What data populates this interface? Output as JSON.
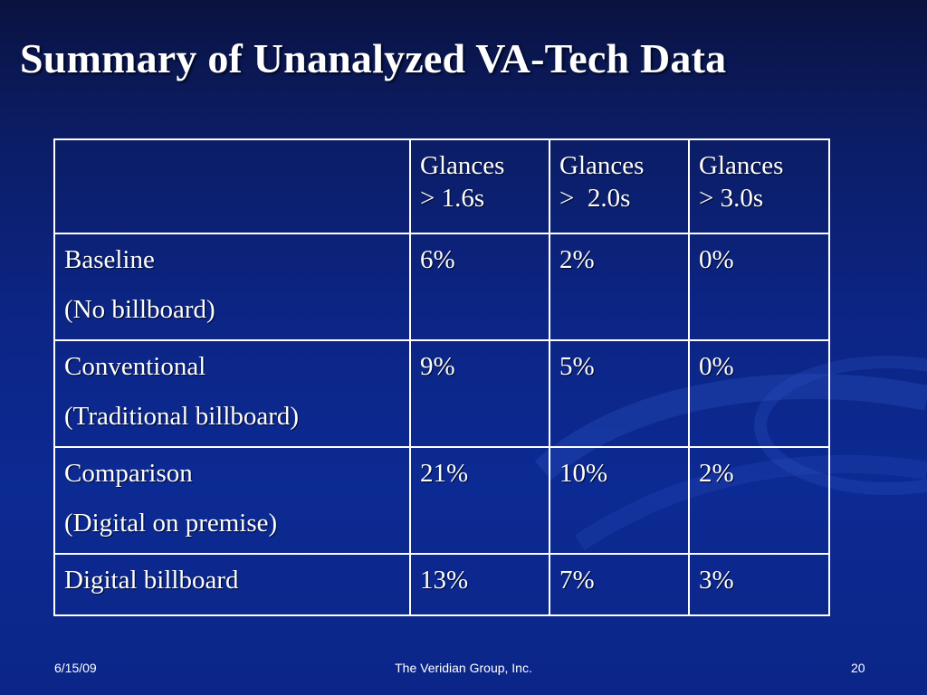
{
  "slide": {
    "title": "Summary of  Unanalyzed VA-Tech Data"
  },
  "table": {
    "headers": [
      {
        "line1": "",
        "line2": ""
      },
      {
        "line1": "Glances",
        "line2": "> 1.6s"
      },
      {
        "line1": "Glances",
        "line2": ">  2.0s"
      },
      {
        "line1": "Glances",
        "line2": "> 3.0s"
      }
    ],
    "rows": [
      {
        "label": "Baseline",
        "sublabel": "(No billboard)",
        "values": [
          "6%",
          "2%",
          "0%"
        ]
      },
      {
        "label": "Conventional",
        "sublabel": "(Traditional billboard)",
        "values": [
          "9%",
          "5%",
          "0%"
        ]
      },
      {
        "label": "Comparison",
        "sublabel": "(Digital on premise)",
        "values": [
          "21%",
          "10%",
          "2%"
        ]
      },
      {
        "label": "Digital billboard",
        "sublabel": "",
        "values": [
          "13%",
          "7%",
          "3%"
        ]
      }
    ]
  },
  "footer": {
    "date": "6/15/09",
    "company": "The Veridian Group, Inc.",
    "page": "20"
  },
  "colors": {
    "background_top": "#0a1240",
    "background_main": "#0c2a93",
    "text": "#ffffff",
    "border": "#ffffff"
  }
}
